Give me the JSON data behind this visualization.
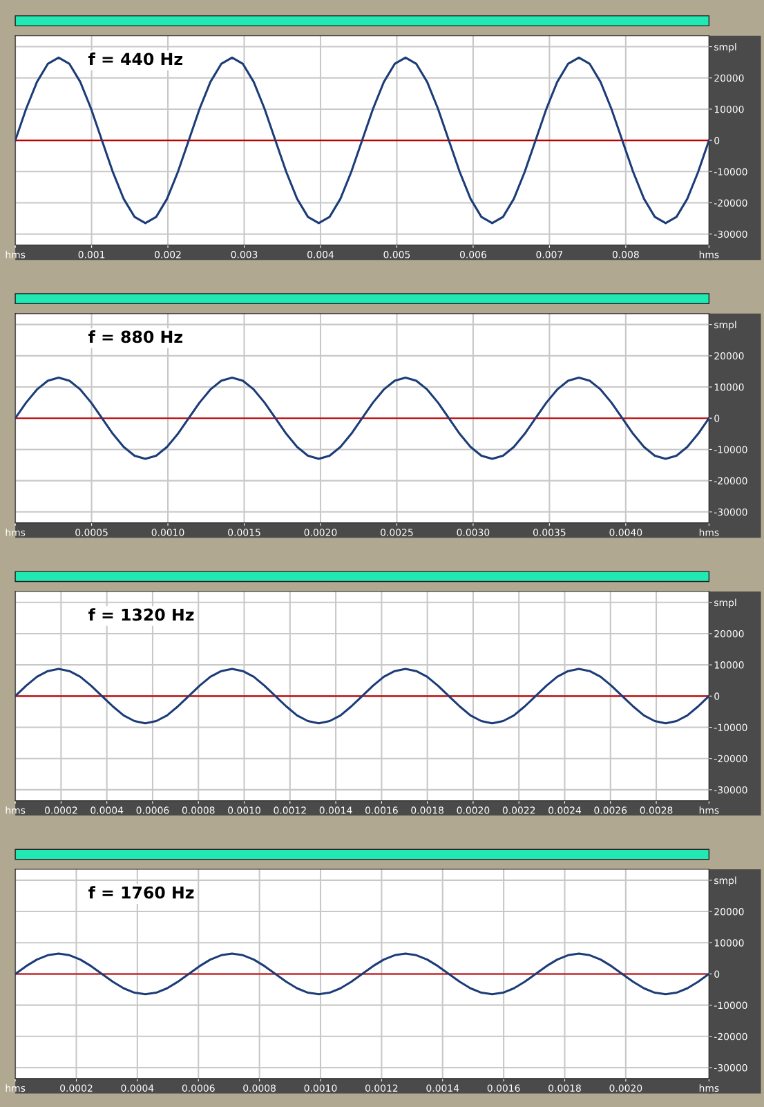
{
  "chart_data": [
    {
      "type": "line",
      "title": "f = 440 Hz",
      "x": [
        0,
        0.000142,
        0.000284,
        0.000426,
        0.000568,
        0.00071,
        0.000852,
        0.000994,
        0.001136,
        0.001278,
        0.00142,
        0.001563,
        0.001705,
        0.001847,
        0.001989,
        0.002131,
        0.002273,
        0.002415,
        0.002557,
        0.002699,
        0.002841,
        0.002983,
        0.003125,
        0.003267,
        0.003409,
        0.003551,
        0.003693,
        0.003835,
        0.003977,
        0.004119,
        0.004261,
        0.004403,
        0.004545,
        0.004688,
        0.00483,
        0.004972,
        0.005114,
        0.005256,
        0.005398,
        0.00554,
        0.005682,
        0.005824,
        0.005966,
        0.006108,
        0.00625,
        0.006392,
        0.006534,
        0.006676,
        0.006818,
        0.00696,
        0.007102,
        0.007244,
        0.007386,
        0.007528,
        0.00767,
        0.007812,
        0.007955,
        0.008097,
        0.008239,
        0.008381,
        0.008523,
        0.008665,
        0.008807,
        0.008949,
        0.009091
      ],
      "series": [
        {
          "color": "#1c3c78",
          "values": [
            0,
            10100,
            18700,
            24500,
            26500,
            24500,
            18700,
            10100,
            0,
            -10100,
            -18700,
            -24500,
            -26500,
            -24500,
            -18700,
            -10100,
            0,
            10100,
            18700,
            24500,
            26500,
            24500,
            18700,
            10100,
            0,
            -10100,
            -18700,
            -24500,
            -26500,
            -24500,
            -18700,
            -10100,
            0,
            10100,
            18700,
            24500,
            26500,
            24500,
            18700,
            10100,
            0,
            -10100,
            -18700,
            -24500,
            -26500,
            -24500,
            -18700,
            -10100,
            0,
            10100,
            18700,
            24500,
            26500,
            24500,
            18700,
            10100,
            0,
            -10100,
            -18700,
            -24500,
            -26500,
            -24500,
            -18700,
            -10100,
            0
          ]
        }
      ],
      "xlim": [
        0,
        0.009091
      ],
      "xticks": [
        {
          "value": 0,
          "label": "hms"
        },
        0.001,
        0.002,
        0.003,
        0.004,
        0.005,
        0.006,
        0.007,
        0.008,
        {
          "value": 0.009091,
          "label": "hms"
        }
      ],
      "ylim": [
        -33500,
        33500
      ],
      "yticks": [
        {
          "value": -30000,
          "label": "-30000"
        },
        {
          "value": -20000,
          "label": "-20000"
        },
        {
          "value": -10000,
          "label": "-10000"
        },
        0,
        10000,
        20000,
        {
          "value": 30000,
          "label": "smpl"
        }
      ],
      "ref_lines": [
        {
          "axis": "y",
          "value": 0,
          "color": "#c00000"
        }
      ],
      "grid": true
    },
    {
      "type": "line",
      "title": "f = 880 Hz",
      "x": [
        0,
        7.1e-05,
        0.000142,
        0.0002131,
        0.0002841,
        0.0003551,
        0.0004261,
        0.0004972,
        0.0005682,
        0.0006392,
        0.0007102,
        0.0007813,
        0.0008523,
        0.0009233,
        0.0009943,
        0.0010653,
        0.0011364,
        0.0012074,
        0.0012784,
        0.0013494,
        0.0014205,
        0.0014915,
        0.0015625,
        0.0016335,
        0.0017045,
        0.0017756,
        0.0018466,
        0.0019176,
        0.0019886,
        0.0020597,
        0.0021307,
        0.0022017,
        0.0022727,
        0.0023437,
        0.0024148,
        0.0024858,
        0.0025568,
        0.0026278,
        0.0026989,
        0.0027699,
        0.0028409,
        0.0029119,
        0.002983,
        0.003054,
        0.003125,
        0.003196,
        0.003267,
        0.0033381,
        0.0034091,
        0.0034801,
        0.0035511,
        0.0036222,
        0.0036932,
        0.0037642,
        0.0038352,
        0.0039063,
        0.0039773,
        0.0040483,
        0.0041193,
        0.0041903,
        0.0042614,
        0.0043324,
        0.0044034,
        0.0044744,
        0.0045455
      ],
      "series": [
        {
          "color": "#1c3c78",
          "values": [
            0,
            5000,
            9200,
            12000,
            13000,
            12000,
            9200,
            5000,
            0,
            -5000,
            -9200,
            -12000,
            -13000,
            -12000,
            -9200,
            -5000,
            0,
            5000,
            9200,
            12000,
            13000,
            12000,
            9200,
            5000,
            0,
            -5000,
            -9200,
            -12000,
            -13000,
            -12000,
            -9200,
            -5000,
            0,
            5000,
            9200,
            12000,
            13000,
            12000,
            9200,
            5000,
            0,
            -5000,
            -9200,
            -12000,
            -13000,
            -12000,
            -9200,
            -5000,
            0,
            5000,
            9200,
            12000,
            13000,
            12000,
            9200,
            5000,
            0,
            -5000,
            -9200,
            -12000,
            -13000,
            -12000,
            -9200,
            -5000,
            0
          ]
        }
      ],
      "xlim": [
        0,
        0.0045455
      ],
      "xticks": [
        {
          "value": 0,
          "label": "hms"
        },
        {
          "value": 0.0005,
          "label": "0.0005"
        },
        {
          "value": 0.001,
          "label": "0.0010"
        },
        {
          "value": 0.0015,
          "label": "0.0015"
        },
        {
          "value": 0.002,
          "label": "0.0020"
        },
        {
          "value": 0.0025,
          "label": "0.0025"
        },
        {
          "value": 0.003,
          "label": "0.0030"
        },
        {
          "value": 0.0035,
          "label": "0.0035"
        },
        {
          "value": 0.004,
          "label": "0.0040"
        },
        {
          "value": 0.0045455,
          "label": "hms"
        }
      ],
      "ylim": [
        -33500,
        33500
      ],
      "yticks": [
        {
          "value": -30000,
          "label": "-30000"
        },
        {
          "value": -20000,
          "label": "-20000"
        },
        {
          "value": -10000,
          "label": "-10000"
        },
        0,
        10000,
        20000,
        {
          "value": 30000,
          "label": "smpl"
        }
      ],
      "ref_lines": [
        {
          "axis": "y",
          "value": 0,
          "color": "#c00000"
        }
      ],
      "grid": true
    },
    {
      "type": "line",
      "title": "f = 1320 Hz",
      "x": [
        0,
        4.73e-05,
        9.47e-05,
        0.000142,
        0.0001894,
        0.0002367,
        0.0002841,
        0.0003314,
        0.0003788,
        0.0004261,
        0.0004735,
        0.0005208,
        0.0005682,
        0.0006155,
        0.0006629,
        0.0007102,
        0.0007576,
        0.0008049,
        0.0008523,
        0.0008996,
        0.000947,
        0.0009943,
        0.0010417,
        0.001089,
        0.0011364,
        0.0011837,
        0.0012311,
        0.0012784,
        0.0013258,
        0.0013731,
        0.0014205,
        0.0014678,
        0.0015152,
        0.0015625,
        0.0016098,
        0.0016572,
        0.0017045,
        0.0017519,
        0.0017992,
        0.0018466,
        0.0018939,
        0.0019413,
        0.0019886,
        0.002036,
        0.0020833,
        0.0021307,
        0.002178,
        0.0022254,
        0.0022727,
        0.0023201,
        0.0023674,
        0.0024148,
        0.0024621,
        0.0025095,
        0.0025568,
        0.0026042,
        0.0026515,
        0.0026989,
        0.0027462,
        0.0027936,
        0.0028409,
        0.0028883,
        0.0029356,
        0.002983,
        0.0030303
      ],
      "series": [
        {
          "color": "#1c3c78",
          "values": [
            0,
            3300,
            6200,
            8000,
            8700,
            8000,
            6200,
            3300,
            0,
            -3300,
            -6200,
            -8000,
            -8700,
            -8000,
            -6200,
            -3300,
            0,
            3300,
            6200,
            8000,
            8700,
            8000,
            6200,
            3300,
            0,
            -3300,
            -6200,
            -8000,
            -8700,
            -8000,
            -6200,
            -3300,
            0,
            3300,
            6200,
            8000,
            8700,
            8000,
            6200,
            3300,
            0,
            -3300,
            -6200,
            -8000,
            -8700,
            -8000,
            -6200,
            -3300,
            0,
            3300,
            6200,
            8000,
            8700,
            8000,
            6200,
            3300,
            0,
            -3300,
            -6200,
            -8000,
            -8700,
            -8000,
            -6200,
            -3300,
            0
          ]
        }
      ],
      "xlim": [
        0,
        0.0030303
      ],
      "xticks": [
        {
          "value": 0,
          "label": "hms"
        },
        {
          "value": 0.0002,
          "label": "0.0002"
        },
        {
          "value": 0.0004,
          "label": "0.0004"
        },
        {
          "value": 0.0006,
          "label": "0.0006"
        },
        {
          "value": 0.0008,
          "label": "0.0008"
        },
        {
          "value": 0.001,
          "label": "0.0010"
        },
        {
          "value": 0.0012,
          "label": "0.0012"
        },
        {
          "value": 0.0014,
          "label": "0.0014"
        },
        {
          "value": 0.0016,
          "label": "0.0016"
        },
        {
          "value": 0.0018,
          "label": "0.0018"
        },
        {
          "value": 0.002,
          "label": "0.0020"
        },
        {
          "value": 0.0022,
          "label": "0.0022"
        },
        {
          "value": 0.0024,
          "label": "0.0024"
        },
        {
          "value": 0.0026,
          "label": "0.0026"
        },
        {
          "value": 0.0028,
          "label": "0.0028"
        },
        {
          "value": 0.0030303,
          "label": "hms"
        }
      ],
      "ylim": [
        -33500,
        33500
      ],
      "yticks": [
        {
          "value": -30000,
          "label": "-30000"
        },
        {
          "value": -20000,
          "label": "-20000"
        },
        {
          "value": -10000,
          "label": "-10000"
        },
        0,
        10000,
        20000,
        {
          "value": 30000,
          "label": "smpl"
        }
      ],
      "ref_lines": [
        {
          "axis": "y",
          "value": 0,
          "color": "#c00000"
        }
      ],
      "grid": true
    },
    {
      "type": "line",
      "title": "f = 1760 Hz",
      "x": [
        0,
        3.55e-05,
        7.1e-05,
        0.0001065,
        0.000142,
        0.0001776,
        0.0002131,
        0.0002486,
        0.0002841,
        0.0003196,
        0.0003551,
        0.0003906,
        0.0004261,
        0.0004617,
        0.0004972,
        0.0005327,
        0.0005682,
        0.0006037,
        0.0006392,
        0.0006747,
        0.0007102,
        0.0007458,
        0.0007813,
        0.0008168,
        0.0008523,
        0.0008878,
        0.0009233,
        0.0009588,
        0.0009943,
        0.0010298,
        0.0010653,
        0.0011009,
        0.0011364,
        0.0011719,
        0.0012074,
        0.0012429,
        0.0012784,
        0.0013139,
        0.0013494,
        0.0013849,
        0.0014205,
        0.001456,
        0.0014915,
        0.001527,
        0.0015625,
        0.001598,
        0.0016335,
        0.001669,
        0.0017045,
        0.0017401,
        0.0017756,
        0.0018111,
        0.0018466,
        0.0018821,
        0.0019176,
        0.0019531,
        0.0019886,
        0.0020241,
        0.0020597,
        0.0020952,
        0.0021307,
        0.0021662,
        0.0022017,
        0.0022372,
        0.0022727
      ],
      "series": [
        {
          "color": "#1c3c78",
          "values": [
            0,
            2500,
            4600,
            6000,
            6500,
            6000,
            4600,
            2500,
            0,
            -2500,
            -4600,
            -6000,
            -6500,
            -6000,
            -4600,
            -2500,
            0,
            2500,
            4600,
            6000,
            6500,
            6000,
            4600,
            2500,
            0,
            -2500,
            -4600,
            -6000,
            -6500,
            -6000,
            -4600,
            -2500,
            0,
            2500,
            4600,
            6000,
            6500,
            6000,
            4600,
            2500,
            0,
            -2500,
            -4600,
            -6000,
            -6500,
            -6000,
            -4600,
            -2500,
            0,
            2500,
            4600,
            6000,
            6500,
            6000,
            4600,
            2500,
            0,
            -2500,
            -4600,
            -6000,
            -6500,
            -6000,
            -4600,
            -2500,
            0
          ]
        }
      ],
      "xlim": [
        0,
        0.0022727
      ],
      "xticks": [
        {
          "value": 0,
          "label": "hms"
        },
        {
          "value": 0.0002,
          "label": "0.0002"
        },
        {
          "value": 0.0004,
          "label": "0.0004"
        },
        {
          "value": 0.0006,
          "label": "0.0006"
        },
        {
          "value": 0.0008,
          "label": "0.0008"
        },
        {
          "value": 0.001,
          "label": "0.0010"
        },
        {
          "value": 0.0012,
          "label": "0.0012"
        },
        {
          "value": 0.0014,
          "label": "0.0014"
        },
        {
          "value": 0.0016,
          "label": "0.0016"
        },
        {
          "value": 0.0018,
          "label": "0.0018"
        },
        {
          "value": 0.002,
          "label": "0.0020"
        },
        {
          "value": 0.0022727,
          "label": "hms"
        }
      ],
      "ylim": [
        -33500,
        33500
      ],
      "yticks": [
        {
          "value": -30000,
          "label": "-30000"
        },
        {
          "value": -20000,
          "label": "-20000"
        },
        {
          "value": -10000,
          "label": "-10000"
        },
        0,
        10000,
        20000,
        {
          "value": 30000,
          "label": "smpl"
        }
      ],
      "ref_lines": [
        {
          "axis": "y",
          "value": 0,
          "color": "#c00000"
        }
      ],
      "grid": true
    }
  ]
}
